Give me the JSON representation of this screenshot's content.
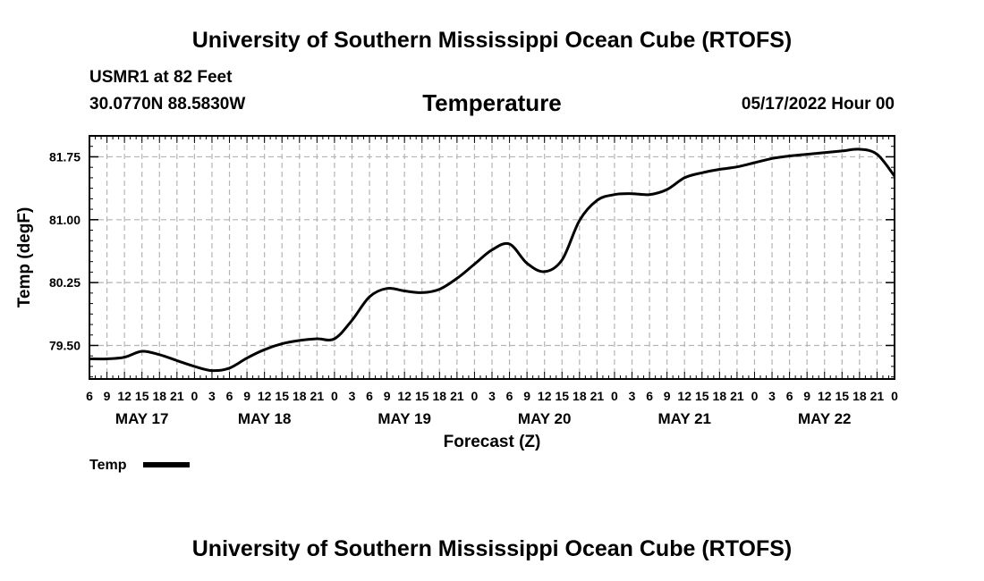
{
  "page": {
    "title_top": "University of Southern Mississippi Ocean Cube (RTOFS)",
    "title_bottom": "University of Southern Mississippi Ocean Cube (RTOFS)",
    "station": "USMR1 at 82 Feet",
    "coords": "30.0770N  88.5830W",
    "parameter": "Temperature",
    "run_time": "05/17/2022 Hour 00"
  },
  "chart_data": {
    "type": "line",
    "title": "Temperature",
    "xlabel": "Forecast (Z)",
    "ylabel": "Temp (degF)",
    "x_unit": "hours since 05/17/2022 00Z",
    "xlim": [
      6,
      144
    ],
    "ylim": [
      79.1,
      82.0
    ],
    "yticks": [
      81.75,
      81.0,
      80.25,
      79.5
    ],
    "ytick_labels": [
      "81.75",
      "81.00",
      "80.25",
      "79.50"
    ],
    "xtick_labels": [
      {
        "x": 6,
        "label": "6"
      },
      {
        "x": 9,
        "label": "9"
      },
      {
        "x": 12,
        "label": "12"
      },
      {
        "x": 15,
        "label": "15"
      },
      {
        "x": 18,
        "label": "18"
      },
      {
        "x": 21,
        "label": "21"
      },
      {
        "x": 24,
        "label": "0"
      },
      {
        "x": 27,
        "label": "3"
      },
      {
        "x": 30,
        "label": "6"
      },
      {
        "x": 33,
        "label": "9"
      },
      {
        "x": 36,
        "label": "12"
      },
      {
        "x": 39,
        "label": "15"
      },
      {
        "x": 42,
        "label": "18"
      },
      {
        "x": 45,
        "label": "21"
      },
      {
        "x": 48,
        "label": "0"
      },
      {
        "x": 51,
        "label": "3"
      },
      {
        "x": 54,
        "label": "6"
      },
      {
        "x": 57,
        "label": "9"
      },
      {
        "x": 60,
        "label": "12"
      },
      {
        "x": 63,
        "label": "15"
      },
      {
        "x": 66,
        "label": "18"
      },
      {
        "x": 69,
        "label": "21"
      },
      {
        "x": 72,
        "label": "0"
      },
      {
        "x": 75,
        "label": "3"
      },
      {
        "x": 78,
        "label": "6"
      },
      {
        "x": 81,
        "label": "9"
      },
      {
        "x": 84,
        "label": "12"
      },
      {
        "x": 87,
        "label": "15"
      },
      {
        "x": 90,
        "label": "18"
      },
      {
        "x": 93,
        "label": "21"
      },
      {
        "x": 96,
        "label": "0"
      },
      {
        "x": 99,
        "label": "3"
      },
      {
        "x": 102,
        "label": "6"
      },
      {
        "x": 105,
        "label": "9"
      },
      {
        "x": 108,
        "label": "12"
      },
      {
        "x": 111,
        "label": "15"
      },
      {
        "x": 114,
        "label": "18"
      },
      {
        "x": 117,
        "label": "21"
      },
      {
        "x": 120,
        "label": "0"
      },
      {
        "x": 123,
        "label": "3"
      },
      {
        "x": 126,
        "label": "6"
      },
      {
        "x": 129,
        "label": "9"
      },
      {
        "x": 132,
        "label": "12"
      },
      {
        "x": 135,
        "label": "15"
      },
      {
        "x": 138,
        "label": "18"
      },
      {
        "x": 141,
        "label": "21"
      },
      {
        "x": 144,
        "label": "0"
      }
    ],
    "day_labels": [
      {
        "x": 15,
        "label": "MAY 17"
      },
      {
        "x": 36,
        "label": "MAY 18"
      },
      {
        "x": 60,
        "label": "MAY 19"
      },
      {
        "x": 84,
        "label": "MAY 20"
      },
      {
        "x": 108,
        "label": "MAY 21"
      },
      {
        "x": 132,
        "label": "MAY 22"
      }
    ],
    "grid": true,
    "legend": {
      "position": "bottom-left",
      "entries": [
        "Temp"
      ]
    },
    "series": [
      {
        "name": "Temp",
        "x": [
          6,
          9,
          12,
          15,
          18,
          21,
          24,
          27,
          30,
          33,
          36,
          39,
          42,
          45,
          48,
          51,
          54,
          57,
          60,
          63,
          66,
          69,
          72,
          75,
          78,
          81,
          84,
          87,
          90,
          93,
          96,
          99,
          102,
          105,
          108,
          111,
          114,
          117,
          120,
          123,
          126,
          129,
          132,
          135,
          138,
          141,
          144
        ],
        "y": [
          79.34,
          79.34,
          79.36,
          79.43,
          79.39,
          79.32,
          79.25,
          79.2,
          79.23,
          79.35,
          79.45,
          79.52,
          79.56,
          79.58,
          79.58,
          79.8,
          80.08,
          80.18,
          80.15,
          80.13,
          80.17,
          80.3,
          80.47,
          80.64,
          80.71,
          80.48,
          80.38,
          80.52,
          80.99,
          81.23,
          81.3,
          81.31,
          81.3,
          81.36,
          81.5,
          81.56,
          81.6,
          81.63,
          81.68,
          81.73,
          81.76,
          81.78,
          81.8,
          81.82,
          81.84,
          81.78,
          81.52
        ]
      }
    ]
  }
}
